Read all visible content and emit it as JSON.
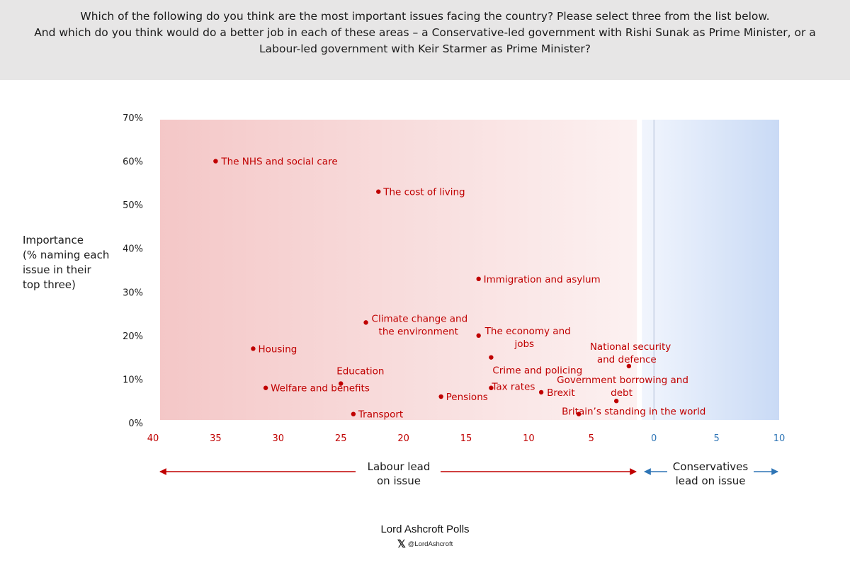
{
  "header": {
    "line1": "Which of the following do you think are the most important issues facing the country? Please select three from the list below.",
    "line2": "And which do you think would do a better job in each of these areas – a Conservative-led government with Rishi Sunak as Prime Minister, or a",
    "line3": "Labour-led government with Keir Starmer as Prime Minister?"
  },
  "colors": {
    "header_bg": "#e7e6e6",
    "labour": "#c00000",
    "conservative": "#2e75b6",
    "labour_shade": "#f4c7c7",
    "conservative_shade": "#c9daf5"
  },
  "chart_data": {
    "type": "scatter",
    "xlim": [
      40,
      -10
    ],
    "ylim": [
      0,
      70
    ],
    "x_ticks": [
      "40",
      "35",
      "30",
      "25",
      "20",
      "15",
      "10",
      "5",
      "0",
      "5",
      "10"
    ],
    "y_ticks": [
      "0%",
      "10%",
      "20%",
      "30%",
      "40%",
      "50%",
      "60%",
      "70%"
    ],
    "ylabel": [
      "Importance",
      "(% naming each",
      "issue in their",
      "top three)"
    ],
    "labour_lead_label": [
      "Labour lead",
      "on issue"
    ],
    "conservative_lead_label": [
      "Conservatives",
      "lead on issue"
    ],
    "points": [
      {
        "label": [
          "The NHS and social care"
        ],
        "lead": 35,
        "importance": 60
      },
      {
        "label": [
          "The cost of living"
        ],
        "lead": 22,
        "importance": 53
      },
      {
        "label": [
          "Immigration and asylum"
        ],
        "lead": 14,
        "importance": 33
      },
      {
        "label": [
          "Climate change and",
          "the environment"
        ],
        "lead": 23,
        "importance": 23
      },
      {
        "label": [
          "The economy and",
          "jobs"
        ],
        "lead": 14,
        "importance": 20
      },
      {
        "label": [
          "Housing"
        ],
        "lead": 32,
        "importance": 17
      },
      {
        "label": [
          "Crime and policing"
        ],
        "lead": 13,
        "importance": 15
      },
      {
        "label": [
          "National security",
          "and defence"
        ],
        "lead": 2,
        "importance": 13
      },
      {
        "label": [
          "Education"
        ],
        "lead": 25,
        "importance": 9
      },
      {
        "label": [
          "Welfare and benefits"
        ],
        "lead": 31,
        "importance": 8
      },
      {
        "label": [
          "Tax rates"
        ],
        "lead": 13,
        "importance": 8
      },
      {
        "label": [
          "Brexit"
        ],
        "lead": 9,
        "importance": 7
      },
      {
        "label": [
          "Government borrowing and",
          "debt"
        ],
        "lead": 3,
        "importance": 5
      },
      {
        "label": [
          "Pensions"
        ],
        "lead": 17,
        "importance": 6
      },
      {
        "label": [
          "Transport"
        ],
        "lead": 24,
        "importance": 2
      },
      {
        "label": [
          "Britain’s standing in the world"
        ],
        "lead": 6,
        "importance": 2
      }
    ]
  },
  "footer": {
    "brand": "Lord Ashcroft Polls",
    "handle": "@LordAshcroft",
    "social_icon": "x-logo-icon"
  }
}
